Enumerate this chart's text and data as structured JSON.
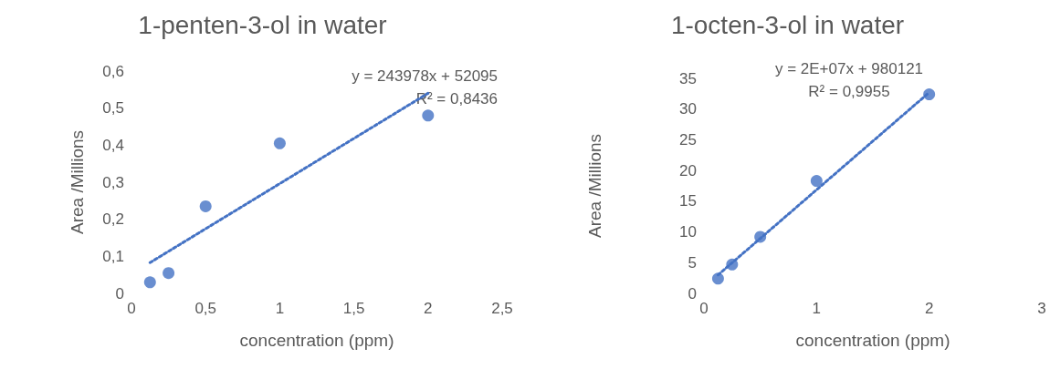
{
  "chart_data": [
    {
      "type": "scatter",
      "title": "1-penten-3-ol in water",
      "xlabel": "concentration (ppm)",
      "ylabel": "Area /Millions",
      "annotations": [
        "y = 243978x + 52095",
        "R² = 0,8436"
      ],
      "grid": false,
      "xlim": [
        0,
        2.5
      ],
      "xticks": [
        0,
        {
          "value": 0.5,
          "label": "0,5"
        },
        1,
        {
          "value": 1.5,
          "label": "1,5"
        },
        2,
        {
          "value": 2.5,
          "label": "2,5"
        }
      ],
      "ylim": [
        0,
        0.6
      ],
      "yticks": [
        0,
        {
          "value": 0.1,
          "label": "0,1"
        },
        {
          "value": 0.2,
          "label": "0,2"
        },
        {
          "value": 0.3,
          "label": "0,3"
        },
        {
          "value": 0.4,
          "label": "0,4"
        },
        {
          "value": 0.5,
          "label": "0,5"
        },
        {
          "value": 0.6,
          "label": "0,6"
        }
      ],
      "series": [
        {
          "marker": "circle",
          "color": "#4472c4",
          "x": [
            0.125,
            0.25,
            0.5,
            1,
            2
          ],
          "values": [
            0.03,
            0.055,
            0.235,
            0.405,
            0.48
          ]
        },
        {
          "type": "line",
          "marker": "none",
          "color": "#4472c4",
          "line_style": "dotted",
          "x": [
            0.125,
            2
          ],
          "values": [
            0.083,
            0.54
          ]
        }
      ]
    },
    {
      "type": "scatter",
      "title": "1-octen-3-ol in water",
      "xlabel": "concentration (ppm)",
      "ylabel": "Area /Millions",
      "annotations": [
        "y = 2E+07x + 980121",
        "R² = 0,9955"
      ],
      "grid": false,
      "xlim": [
        0,
        3
      ],
      "xticks": [
        0,
        1,
        2,
        3
      ],
      "ylim": [
        0,
        35
      ],
      "yticks": [
        0,
        5,
        10,
        15,
        20,
        25,
        30,
        35
      ],
      "series": [
        {
          "marker": "circle",
          "color": "#4472c4",
          "x": [
            0.125,
            0.25,
            0.5,
            1,
            2
          ],
          "values": [
            2.4,
            4.7,
            9.2,
            18.3,
            32.4
          ]
        },
        {
          "type": "line",
          "marker": "none",
          "color": "#4472c4",
          "line_style": "dotted",
          "x": [
            0.125,
            2
          ],
          "values": [
            3,
            32.7
          ]
        }
      ]
    }
  ]
}
